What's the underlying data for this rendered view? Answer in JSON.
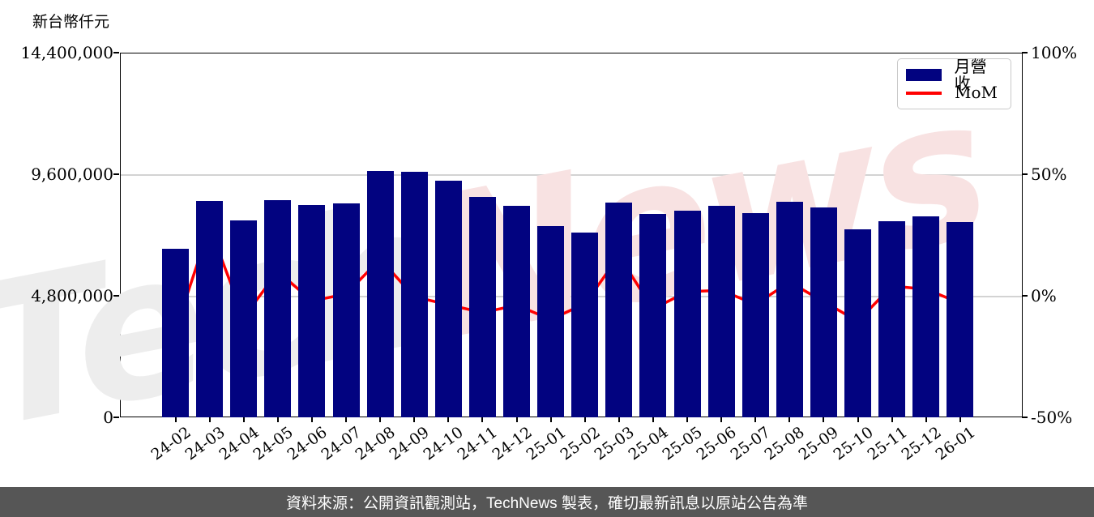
{
  "figure_title": "",
  "watermark": {
    "part1": "Tech",
    "part2": "News",
    "color1": "#ededed",
    "color2": "#f8e2e2"
  },
  "footer": {
    "text": "資料來源：公開資訊觀測站，TechNews 製表，確切最新訊息以原站公告為準",
    "background": "#565656",
    "text_color": "#ffffff"
  },
  "chart_data": {
    "type": "bar",
    "combo": "bar+line",
    "categories": [
      "24-02",
      "24-03",
      "24-04",
      "24-05",
      "24-06",
      "24-07",
      "24-08",
      "24-09",
      "24-10",
      "24-11",
      "24-12",
      "25-01",
      "25-02",
      "25-03",
      "25-04",
      "25-05",
      "25-06",
      "25-07",
      "25-08",
      "25-09",
      "25-10",
      "25-11",
      "25-12",
      "26-01"
    ],
    "series": [
      {
        "name": "月營收",
        "type": "bar",
        "axis": "left",
        "color": "#020380",
        "values": [
          6670000,
          8550000,
          7790000,
          8570000,
          8390000,
          8450000,
          9730000,
          9690000,
          9330000,
          8690000,
          8350000,
          7540000,
          7290000,
          8480000,
          8020000,
          8160000,
          8340000,
          8050000,
          8500000,
          8300000,
          7430000,
          7730000,
          7940000,
          7700000
        ]
      },
      {
        "name": "MoM",
        "type": "line",
        "axis": "right",
        "color": "#ff0000",
        "values": [
          -14.0,
          28.2,
          -8.9,
          10.0,
          -2.1,
          0.7,
          15.1,
          -0.4,
          -3.7,
          -6.9,
          -3.9,
          -9.7,
          -3.3,
          16.3,
          -5.4,
          1.7,
          2.2,
          -3.5,
          5.6,
          -2.4,
          -10.5,
          4.0,
          2.7,
          -3.0
        ]
      }
    ],
    "left_axis": {
      "title": "新台幣仟元",
      "range": [
        0,
        14400000
      ],
      "ticks": [
        0,
        4800000,
        9600000,
        14400000
      ],
      "tick_labels": [
        "0",
        "4,800,000",
        "9,600,000",
        "14,400,000"
      ]
    },
    "right_axis": {
      "title": "",
      "range": [
        -50,
        100
      ],
      "ticks": [
        -50,
        0,
        50,
        100
      ],
      "tick_labels": [
        "-50%",
        "0%",
        "50%",
        "100%"
      ],
      "unit": "%"
    },
    "grid": {
      "horizontal": true,
      "color": "#d3d3d3"
    },
    "legend_position": "top-right"
  }
}
